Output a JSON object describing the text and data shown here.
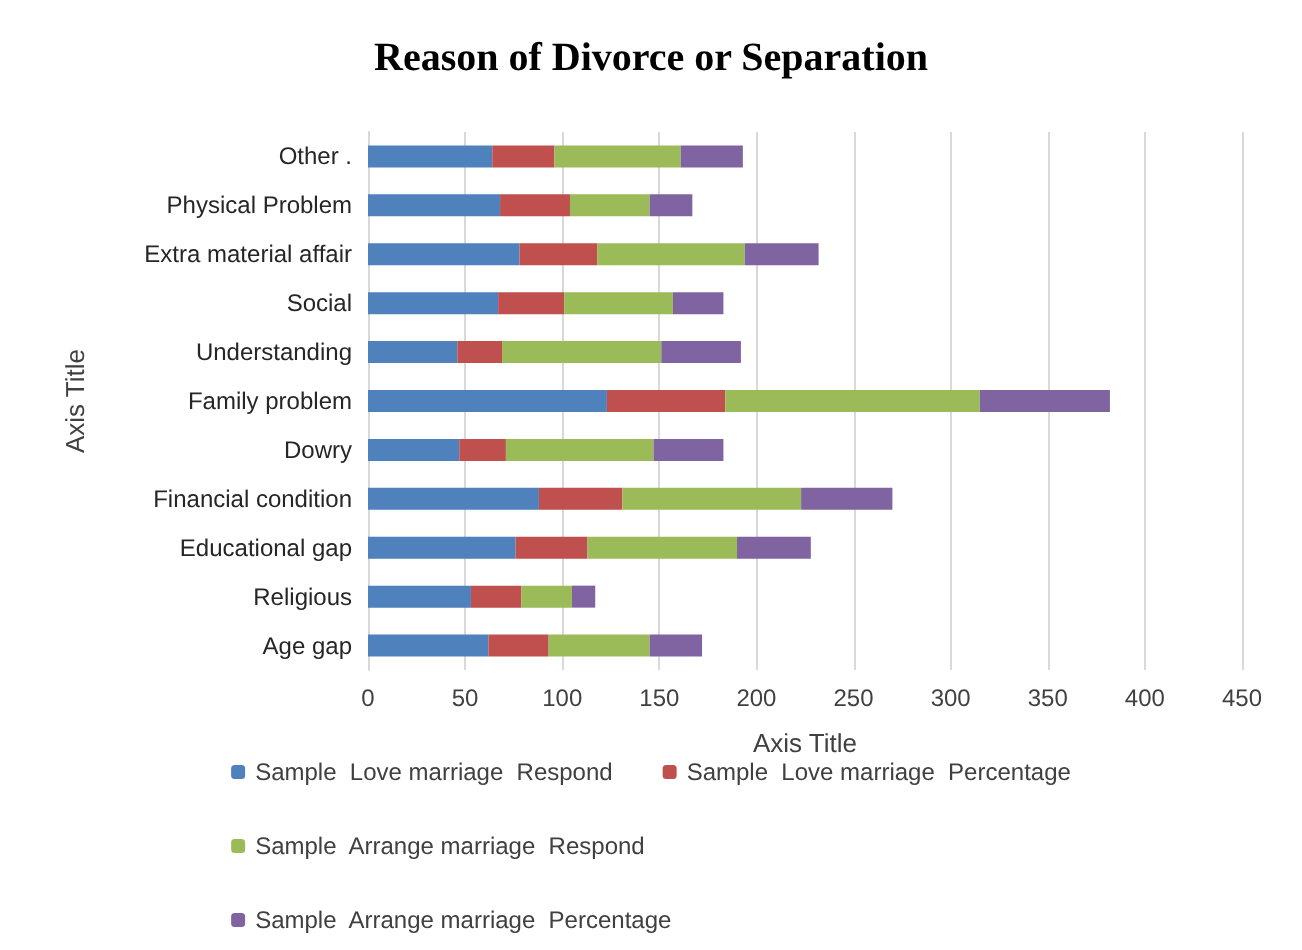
{
  "chart_data": {
    "type": "bar",
    "orientation": "horizontal",
    "stacked": true,
    "title": "Reason of Divorce or Separation",
    "xlabel": "Axis Title",
    "ylabel": "Axis Title",
    "categories": [
      "Other .",
      "Physical Problem",
      "Extra material affair",
      "Social",
      "Understanding",
      "Family problem",
      "Dowry",
      "Financial condition",
      "Educational gap",
      "Religious",
      "Age gap"
    ],
    "series": [
      {
        "name": "Sample  Love marriage  Respond",
        "color": "#4f81bd",
        "values": [
          64,
          68,
          78,
          67,
          46,
          123,
          47,
          88,
          76,
          53,
          62
        ]
      },
      {
        "name": "Sample  Love marriage  Percentage",
        "color": "#c0504d",
        "values": [
          32,
          36,
          40,
          34,
          23,
          61,
          24,
          43,
          37,
          26,
          31
        ]
      },
      {
        "name": "Sample  Arrange marriage  Respond",
        "color": "#9bbb59",
        "values": [
          65,
          41,
          76,
          56,
          82,
          131,
          76,
          92,
          77,
          26,
          52
        ]
      },
      {
        "name": "Sample  Arrange marriage  Percentage",
        "color": "#8064a2",
        "values": [
          32,
          22,
          38,
          26,
          41,
          67,
          36,
          47,
          38,
          12,
          27
        ]
      }
    ],
    "xlim": [
      0,
      450
    ],
    "xticks": [
      0,
      50,
      100,
      150,
      200,
      250,
      300,
      350,
      400,
      450
    ],
    "grid": "x",
    "legend": "bottom"
  }
}
